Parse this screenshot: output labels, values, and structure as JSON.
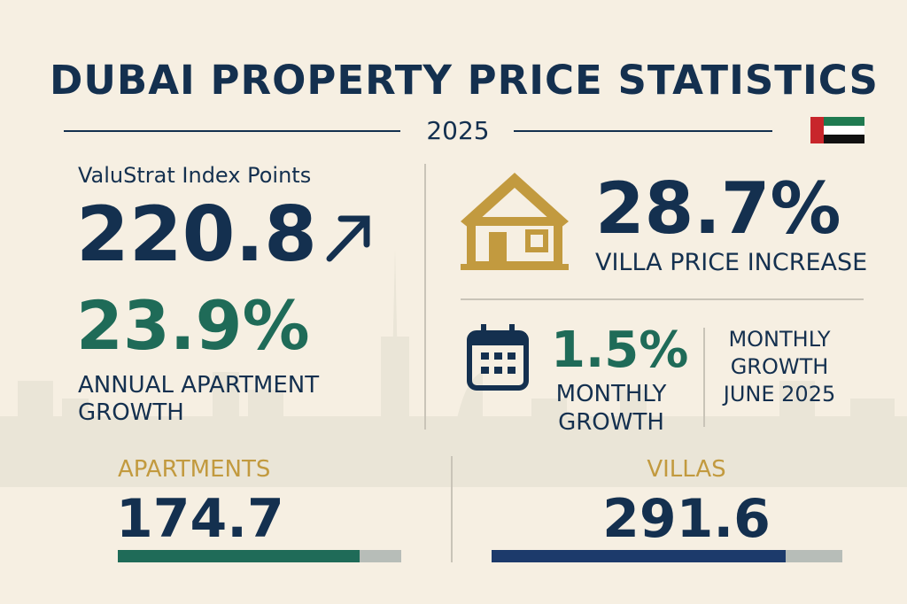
{
  "header": {
    "title": "DUBAI PROPERTY PRICE STATISTICS",
    "year": "2025"
  },
  "index": {
    "label": "ValuStrat Index Points",
    "value": "220.8"
  },
  "apartment_growth": {
    "value": "23.9%",
    "label": "ANNUAL APARTMENT GROWTH"
  },
  "villa_increase": {
    "value": "28.7%",
    "label": "VILLA PRICE INCREASE"
  },
  "monthly": {
    "value": "1.5%",
    "label_lines": [
      "MONTHLY",
      "GROWTH"
    ],
    "note_lines": [
      "MONTHLY",
      "GROWTH",
      "JUNE 2025"
    ]
  },
  "segments": [
    {
      "name": "APARTMENTS",
      "value": "174.7"
    },
    {
      "name": "VILLAS",
      "value": "291.6"
    }
  ]
}
